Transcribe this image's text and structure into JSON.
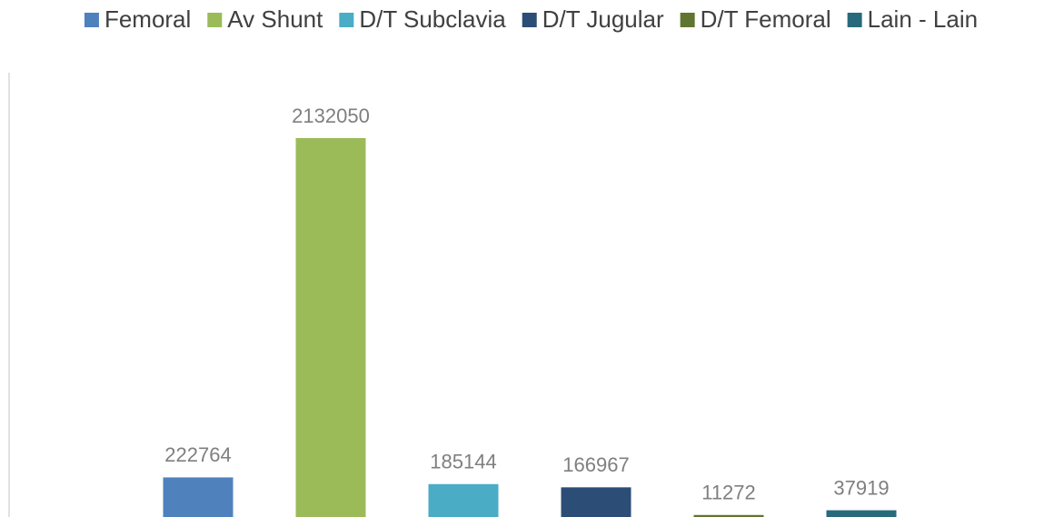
{
  "chart_data": {
    "type": "bar",
    "series": [
      {
        "name": "Femoral",
        "color": "#4f81bd",
        "values": [
          222764
        ]
      },
      {
        "name": "Av Shunt",
        "color": "#9bbb59",
        "values": [
          2132050
        ]
      },
      {
        "name": "D/T Subclavia",
        "color": "#4bacc6",
        "values": [
          185144
        ]
      },
      {
        "name": "D/T Jugular",
        "color": "#2c4d75",
        "values": [
          166967
        ]
      },
      {
        "name": "D/T Femoral",
        "color": "#5f7530",
        "values": [
          11272
        ]
      },
      {
        "name": "Lain - Lain",
        "color": "#276a7c",
        "values": [
          37919
        ]
      }
    ],
    "ylim": [
      0,
      2500000
    ],
    "legend": "top"
  }
}
